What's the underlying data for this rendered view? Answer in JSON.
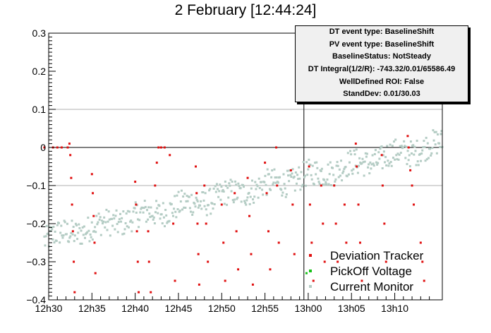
{
  "chart_data": {
    "type": "scatter",
    "title": "2 February [12:44:24]",
    "x_ticks": [
      "12h30",
      "12h35",
      "12h40",
      "12h45",
      "12h50",
      "12h55",
      "13h00",
      "13h05",
      "13h10"
    ],
    "x_tick_minutes": [
      0,
      5,
      10,
      15,
      20,
      25,
      30,
      35,
      40
    ],
    "xlim_minutes": [
      0,
      45.5
    ],
    "y_ticks": [
      "0.3",
      "0.2",
      "0.1",
      "0",
      "−0.1",
      "−0.2",
      "−0.3",
      "−0.4"
    ],
    "y_tick_values": [
      0.3,
      0.2,
      0.1,
      0,
      -0.1,
      -0.2,
      -0.3,
      -0.4
    ],
    "ylim": [
      -0.4,
      0.3
    ],
    "gridlines_y": [
      0.1,
      -0.1
    ],
    "zero_line": 0,
    "marker_minute": 29.5,
    "legend_placement": "bottom-right",
    "series": [
      {
        "name": "Deviation Tracker",
        "color": "#e01010",
        "points": [
          [
            -0.5,
            0.0
          ],
          [
            0.5,
            0.0
          ],
          [
            1.0,
            0.0
          ],
          [
            1.5,
            0.0
          ],
          [
            2.2,
            0.0
          ],
          [
            2.4,
            0.01
          ],
          [
            2.5,
            -0.02
          ],
          [
            2.6,
            -0.08
          ],
          [
            2.7,
            -0.15
          ],
          [
            2.8,
            -0.22
          ],
          [
            2.9,
            -0.3
          ],
          [
            3.0,
            -0.38
          ],
          [
            5.0,
            -0.07
          ],
          [
            5.1,
            -0.12
          ],
          [
            5.2,
            -0.18
          ],
          [
            5.3,
            -0.25
          ],
          [
            5.4,
            -0.33
          ],
          [
            10.0,
            -0.09
          ],
          [
            10.1,
            -0.15
          ],
          [
            10.2,
            -0.22
          ],
          [
            10.3,
            -0.3
          ],
          [
            10.4,
            -0.38
          ],
          [
            11.5,
            -0.22
          ],
          [
            11.6,
            -0.3
          ],
          [
            11.8,
            -0.38
          ],
          [
            12.3,
            -0.1
          ],
          [
            12.5,
            -0.04
          ],
          [
            12.7,
            0.0
          ],
          [
            13.0,
            0.0
          ],
          [
            13.4,
            0.0
          ],
          [
            14.0,
            -0.02
          ],
          [
            14.4,
            -0.2
          ],
          [
            14.6,
            -0.35
          ],
          [
            17.0,
            -0.05
          ],
          [
            17.1,
            -0.12
          ],
          [
            17.2,
            -0.2
          ],
          [
            17.3,
            -0.28
          ],
          [
            17.4,
            -0.36
          ],
          [
            18.0,
            -0.1
          ],
          [
            18.2,
            -0.2
          ],
          [
            18.4,
            -0.3
          ],
          [
            20.0,
            -0.15
          ],
          [
            20.2,
            -0.25
          ],
          [
            20.4,
            -0.35
          ],
          [
            21.5,
            -0.12
          ],
          [
            21.7,
            -0.22
          ],
          [
            21.9,
            -0.32
          ],
          [
            23.0,
            -0.08
          ],
          [
            23.2,
            -0.18
          ],
          [
            23.4,
            -0.28
          ],
          [
            23.6,
            -0.36
          ],
          [
            25.0,
            -0.04
          ],
          [
            25.2,
            -0.12
          ],
          [
            25.4,
            -0.22
          ],
          [
            25.6,
            -0.32
          ],
          [
            26.3,
            0.0
          ],
          [
            26.4,
            -0.1
          ],
          [
            26.6,
            -0.25
          ],
          [
            28.0,
            -0.06
          ],
          [
            28.2,
            -0.15
          ],
          [
            28.4,
            -0.28
          ],
          [
            30.1,
            -0.05
          ],
          [
            30.2,
            -0.15
          ],
          [
            30.4,
            -0.25
          ],
          [
            30.6,
            -0.35
          ],
          [
            31.5,
            -0.1
          ],
          [
            31.7,
            -0.2
          ],
          [
            31.9,
            -0.3
          ],
          [
            33.0,
            -0.1
          ],
          [
            33.2,
            -0.2
          ],
          [
            33.4,
            -0.3
          ],
          [
            34.2,
            -0.15
          ],
          [
            34.4,
            -0.25
          ],
          [
            35.5,
            0.01
          ],
          [
            35.6,
            -0.05
          ],
          [
            35.8,
            -0.15
          ],
          [
            36.0,
            -0.25
          ],
          [
            36.2,
            -0.35
          ],
          [
            38.5,
            -0.02
          ],
          [
            38.6,
            -0.1
          ],
          [
            38.8,
            -0.2
          ],
          [
            39.0,
            -0.3
          ],
          [
            41.5,
            0.03
          ],
          [
            41.6,
            0.0
          ],
          [
            41.8,
            -0.06
          ],
          [
            42.0,
            -0.1
          ],
          [
            42.2,
            -0.15
          ],
          [
            43.0,
            -0.25
          ],
          [
            43.2,
            -0.3
          ],
          [
            43.4,
            -0.35
          ]
        ]
      },
      {
        "name": "PickOff Voltage",
        "color": "#18c018",
        "points": [
          [
            29.8,
            -0.33
          ]
        ]
      },
      {
        "name": "Current Monitor",
        "color": "#b4ccc4",
        "band": {
          "x_start": -0.5,
          "x_end": 45.5,
          "y_start": -0.24,
          "y_end": 0.01,
          "spread": 0.035,
          "count": 520
        }
      }
    ]
  },
  "stats_box": {
    "lines": [
      "DT event type: BaselineShift",
      "PV event type: BaselineShift",
      "BaselineStatus: NotSteady",
      "DT Integral(1/2/R): -743.32/0.01/65586.49",
      "WellDefined ROI: False",
      "StandDev: 0.01/30.03"
    ]
  },
  "legend": {
    "items": [
      {
        "label": "Deviation Tracker",
        "color": "#e01010"
      },
      {
        "label": "PickOff Voltage",
        "color": "#18c018"
      },
      {
        "label": "Current Monitor",
        "color": "#b4ccc4"
      }
    ]
  }
}
